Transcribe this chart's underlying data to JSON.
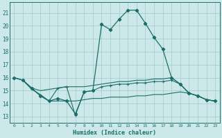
{
  "xlabel": "Humidex (Indice chaleur)",
  "bg_color": "#cde8e8",
  "grid_color": "#aacece",
  "line_color": "#1a6e6a",
  "xlim": [
    -0.5,
    23.5
  ],
  "ylim": [
    12.5,
    21.8
  ],
  "yticks": [
    13,
    14,
    15,
    16,
    17,
    18,
    19,
    20,
    21
  ],
  "xticks": [
    0,
    1,
    2,
    3,
    4,
    5,
    6,
    7,
    8,
    9,
    10,
    11,
    12,
    13,
    14,
    15,
    16,
    17,
    18,
    19,
    20,
    21,
    22,
    23
  ],
  "series": [
    {
      "x": [
        0,
        1,
        2,
        3,
        4,
        5,
        6,
        7,
        8,
        9,
        10,
        11,
        12,
        13,
        14,
        15,
        16,
        17,
        18,
        19,
        20,
        21,
        22,
        23
      ],
      "y": [
        16.0,
        15.8,
        15.2,
        14.6,
        14.2,
        14.4,
        14.2,
        13.2,
        14.9,
        15.0,
        20.1,
        19.7,
        20.5,
        21.2,
        21.2,
        20.2,
        19.1,
        18.2,
        16.0,
        15.5,
        14.8,
        14.6,
        14.3,
        14.2
      ],
      "marker": true
    },
    {
      "x": [
        0,
        1,
        2,
        3,
        4,
        5,
        6,
        7,
        8,
        9,
        10,
        11,
        12,
        13,
        14,
        15,
        16,
        17,
        18,
        19,
        20,
        21,
        22,
        23
      ],
      "y": [
        16.0,
        15.8,
        15.2,
        15.0,
        15.1,
        15.2,
        15.3,
        15.3,
        15.3,
        15.4,
        15.5,
        15.6,
        15.7,
        15.7,
        15.8,
        15.8,
        15.9,
        15.9,
        16.0,
        15.5,
        14.8,
        14.6,
        14.3,
        14.2
      ],
      "marker": false
    },
    {
      "x": [
        0,
        1,
        2,
        3,
        4,
        5,
        6,
        7,
        8,
        9,
        10,
        11,
        12,
        13,
        14,
        15,
        16,
        17,
        18,
        19,
        20,
        21,
        22,
        23
      ],
      "y": [
        16.0,
        15.8,
        15.1,
        14.7,
        14.2,
        14.2,
        14.2,
        14.2,
        14.3,
        14.4,
        14.4,
        14.5,
        14.5,
        14.5,
        14.6,
        14.6,
        14.7,
        14.7,
        14.8,
        14.9,
        14.8,
        14.6,
        14.3,
        14.2
      ],
      "marker": false
    },
    {
      "x": [
        1,
        2,
        3,
        4,
        5,
        6,
        7,
        8,
        9,
        10,
        11,
        12,
        13,
        14,
        15,
        16,
        17,
        18,
        19,
        20,
        21,
        22,
        23
      ],
      "y": [
        15.8,
        15.2,
        14.6,
        14.2,
        15.2,
        15.3,
        13.1,
        14.9,
        15.0,
        15.3,
        15.4,
        15.5,
        15.5,
        15.6,
        15.6,
        15.7,
        15.7,
        15.8,
        15.5,
        14.8,
        14.6,
        14.3,
        14.2
      ],
      "marker": true
    }
  ]
}
